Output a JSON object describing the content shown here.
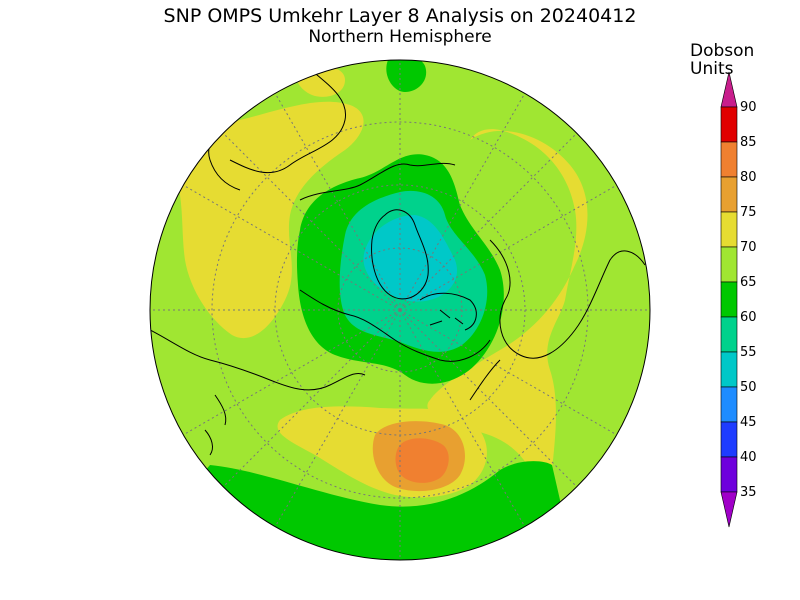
{
  "title": {
    "line1": "SNP OMPS Umkehr Layer 8 Analysis on 20240412",
    "line2": "Northern Hemisphere"
  },
  "colorbar": {
    "label_line1": "Dobson",
    "label_line2": "Units",
    "ticks": [
      "90",
      "85",
      "80",
      "75",
      "70",
      "65",
      "60",
      "55",
      "50",
      "45",
      "40",
      "35"
    ],
    "colors": [
      {
        "range": "85-90",
        "hex": "#e00000"
      },
      {
        "range": "80-85",
        "hex": "#f08030"
      },
      {
        "range": "75-80",
        "hex": "#e8a030"
      },
      {
        "range": "70-75",
        "hex": "#e6dc32"
      },
      {
        "range": "65-70",
        "hex": "#a0e632"
      },
      {
        "range": "60-65",
        "hex": "#00c800"
      },
      {
        "range": "55-60",
        "hex": "#00d28c"
      },
      {
        "range": "50-55",
        "hex": "#00c8c8"
      },
      {
        "range": "45-50",
        "hex": "#1e8cff"
      },
      {
        "range": "40-45",
        "hex": "#1e3cff"
      },
      {
        "range": "35-40",
        "hex": "#6e00dc"
      },
      {
        "range": "<35",
        "hex": "#a000c8"
      },
      {
        "range": ">90",
        "hex": "#c81e8c"
      }
    ]
  },
  "map": {
    "projection": "north-polar-stereographic",
    "field_summary": "Ozone column values mostly 65-75 DU, minimum 55-60 DU near the pole, maximum 80-85 DU over the North Pacific."
  }
}
